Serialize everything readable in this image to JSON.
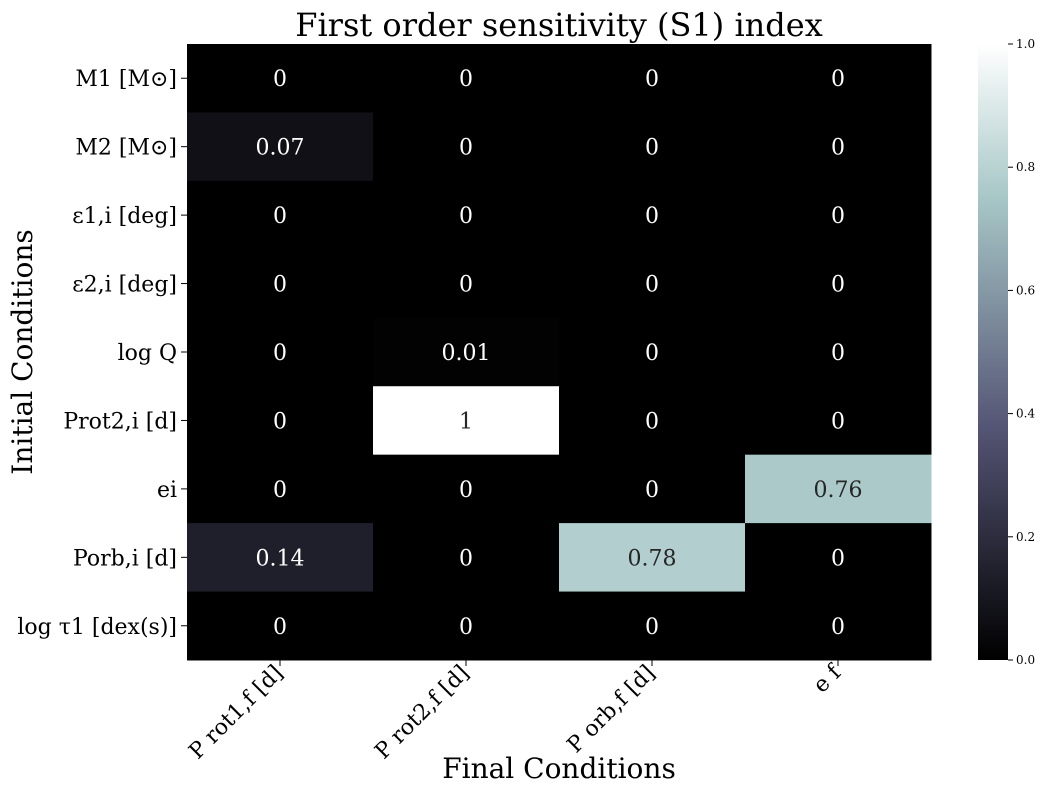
{
  "chart_data": {
    "type": "heatmap",
    "title": "First order sensitivity (S1) index",
    "xlabel": "Final Conditions",
    "ylabel": "Initial Conditions",
    "columns": [
      "P rot1,f [d]",
      "P rot2,f [d]",
      "P orb,f [d]",
      "e f"
    ],
    "rows": [
      "M1 [M⊙]",
      "M2 [M⊙]",
      "ε1,i [deg]",
      "ε2,i [deg]",
      "log Q",
      "Prot2,i [d]",
      "ei",
      "Porb,i [d]",
      "log τ1 [dex(s)]"
    ],
    "values": [
      [
        0,
        0,
        0,
        0
      ],
      [
        0.07,
        0,
        0,
        0
      ],
      [
        0,
        0,
        0,
        0
      ],
      [
        0,
        0,
        0,
        0
      ],
      [
        0,
        0.01,
        0,
        0
      ],
      [
        0,
        1,
        0,
        0
      ],
      [
        0,
        0,
        0,
        0.76
      ],
      [
        0.14,
        0,
        0.78,
        0
      ],
      [
        0,
        0,
        0,
        0
      ]
    ],
    "cell_labels": [
      [
        "0",
        "0",
        "0",
        "0"
      ],
      [
        "0.07",
        "0",
        "0",
        "0"
      ],
      [
        "0",
        "0",
        "0",
        "0"
      ],
      [
        "0",
        "0",
        "0",
        "0"
      ],
      [
        "0",
        "0.01",
        "0",
        "0"
      ],
      [
        "0",
        "1",
        "0",
        "0"
      ],
      [
        "0",
        "0",
        "0",
        "0.76"
      ],
      [
        "0.14",
        "0",
        "0.78",
        "0"
      ],
      [
        "0",
        "0",
        "0",
        "0"
      ]
    ],
    "colorbar": {
      "range": [
        0,
        1
      ],
      "ticks": [
        0,
        0.2,
        0.4,
        0.6,
        0.8,
        1.0
      ],
      "tick_labels": [
        "0.0",
        "0.2",
        "0.4",
        "0.6",
        "0.8",
        "1.0"
      ],
      "colormap": "bone"
    }
  }
}
